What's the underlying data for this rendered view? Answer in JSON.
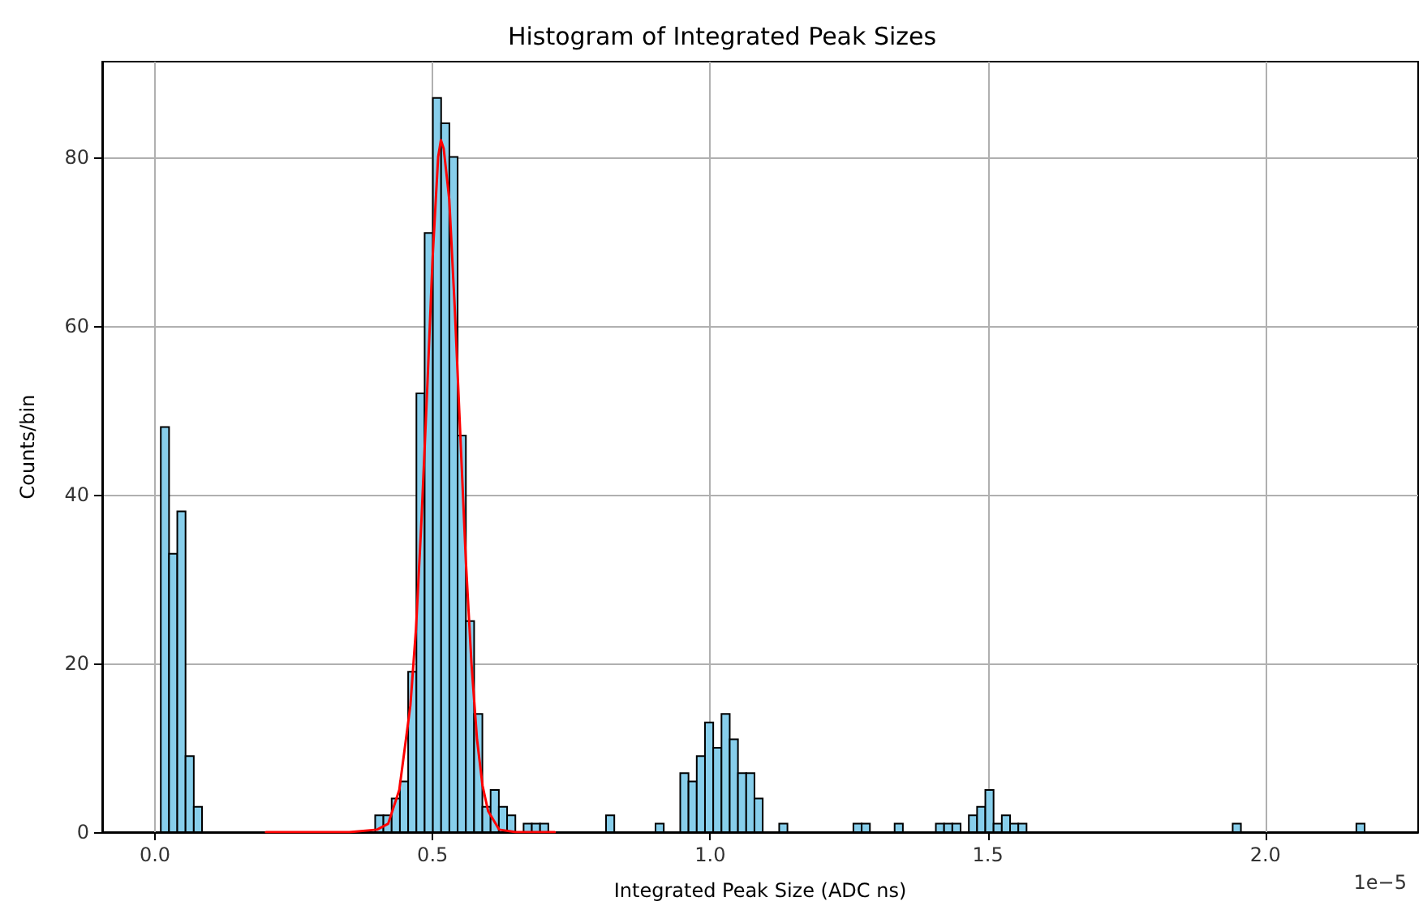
{
  "chart_data": {
    "type": "histogram",
    "title": "Histogram of Integrated Peak Sizes",
    "xlabel": "Integrated Peak Size (ADC ns)",
    "ylabel": "Counts/bin",
    "annotations": [
      "1e−5"
    ],
    "xlim": [
      -0.095,
      2.275
    ],
    "ylim": [
      0,
      91.3
    ],
    "xticks": [
      {
        "value": 0,
        "label": "0.0"
      },
      {
        "value": 0.5,
        "label": "0.5"
      },
      {
        "value": 1,
        "label": "1.0"
      },
      {
        "value": 1.5,
        "label": "1.5"
      },
      {
        "value": 2,
        "label": "2.0"
      }
    ],
    "yticks": [
      0,
      20,
      40,
      60,
      80
    ],
    "grid": true,
    "bins": [
      0.0105,
      0.02535,
      0.0402,
      0.05505,
      0.0699,
      0.08475,
      0.0996,
      0.11445,
      0.1293,
      0.14415,
      0.159,
      0.17385,
      0.1887,
      0.20355,
      0.2184,
      0.23325,
      0.2481,
      0.26295,
      0.2778,
      0.29265,
      0.3075,
      0.32235,
      0.3372,
      0.35205,
      0.3669,
      0.38175,
      0.3966,
      0.41145,
      0.4263,
      0.44115,
      0.456,
      0.47085,
      0.4857,
      0.50055,
      0.5154,
      0.53025,
      0.5451,
      0.55995,
      0.5748,
      0.58965,
      0.6045,
      0.61935,
      0.6342,
      0.64905,
      0.6639,
      0.67875,
      0.6936,
      0.70845,
      0.7233,
      0.73815,
      0.753,
      0.76785,
      0.7827,
      0.79755,
      0.8124,
      0.82725,
      0.8421,
      0.85695,
      0.8718,
      0.88665,
      0.9015,
      0.91635,
      0.9312,
      0.94605,
      0.9609,
      0.97575,
      0.9906,
      1.00545,
      1.0203,
      1.03515,
      1.05,
      1.06485,
      1.0797,
      1.09455,
      1.1094,
      1.12425,
      1.1391,
      1.15395,
      1.1688,
      1.18365,
      1.1985,
      1.21335,
      1.2282,
      1.24305,
      1.2579,
      1.27275,
      1.2876,
      1.30245,
      1.3173,
      1.33215,
      1.347,
      1.36185,
      1.3767,
      1.39155,
      1.4064,
      1.42125,
      1.4361,
      1.45095,
      1.4658,
      1.48065,
      1.4955,
      1.51035,
      1.5252,
      1.54005,
      1.5549,
      1.56975,
      1.5846,
      1.59945,
      1.6143,
      1.62915,
      1.644,
      1.65885,
      1.6737,
      1.68855,
      1.7034,
      1.71825,
      1.7331,
      1.74795,
      1.7628,
      1.77765,
      1.7925,
      1.80735,
      1.8222,
      1.83705,
      1.8519,
      1.86675,
      1.8816,
      1.89645,
      1.9113,
      1.92615,
      1.941,
      1.95585,
      1.9707,
      1.98555,
      2.0004,
      2.01525,
      2.0301,
      2.04495,
      2.0598,
      2.07465,
      2.0895,
      2.10435,
      2.1192,
      2.13405,
      2.1489,
      2.16375,
      2.1786
    ],
    "series": [
      {
        "color": "#87ceeb",
        "values": [
          48,
          33,
          38,
          9,
          3,
          0,
          0,
          0,
          0,
          0,
          0,
          0,
          0,
          0,
          0,
          0,
          0,
          0,
          0,
          0,
          0,
          0,
          0,
          0,
          0,
          0,
          2,
          2,
          4,
          6,
          19,
          52,
          71,
          87,
          84,
          80,
          47,
          25,
          14,
          3,
          5,
          3,
          2,
          0,
          1,
          1,
          1,
          0,
          0,
          0,
          0,
          0,
          0,
          0,
          2,
          0,
          0,
          0,
          0,
          0,
          1,
          0,
          0,
          7,
          6,
          9,
          13,
          10,
          14,
          11,
          7,
          7,
          4,
          0,
          0,
          1,
          0,
          0,
          0,
          0,
          0,
          0,
          0,
          0,
          1,
          1,
          0,
          0,
          0,
          1,
          0,
          0,
          0,
          0,
          1,
          1,
          1,
          0,
          2,
          3,
          5,
          1,
          2,
          1,
          1,
          0,
          0,
          0,
          0,
          0,
          0,
          0,
          0,
          0,
          0,
          0,
          0,
          0,
          0,
          0,
          0,
          0,
          0,
          0,
          0,
          0,
          0,
          0,
          0,
          0,
          1,
          0,
          0,
          0,
          0,
          0,
          0,
          0,
          0,
          0,
          0,
          0,
          0,
          0,
          0,
          1
        ]
      },
      {
        "type": "line",
        "color": "#ff0000",
        "x": [
          0.2,
          0.35,
          0.4,
          0.42,
          0.44,
          0.46,
          0.47,
          0.48,
          0.49,
          0.5,
          0.51,
          0.515,
          0.52,
          0.53,
          0.54,
          0.55,
          0.56,
          0.57,
          0.58,
          0.59,
          0.6,
          0.62,
          0.65,
          0.72
        ],
        "values": [
          0,
          0,
          0.3,
          1,
          5,
          15,
          24,
          37,
          52,
          68,
          80,
          82,
          81,
          75,
          62,
          47,
          32,
          20,
          11,
          5.5,
          2.5,
          0.3,
          0,
          0
        ]
      }
    ]
  }
}
